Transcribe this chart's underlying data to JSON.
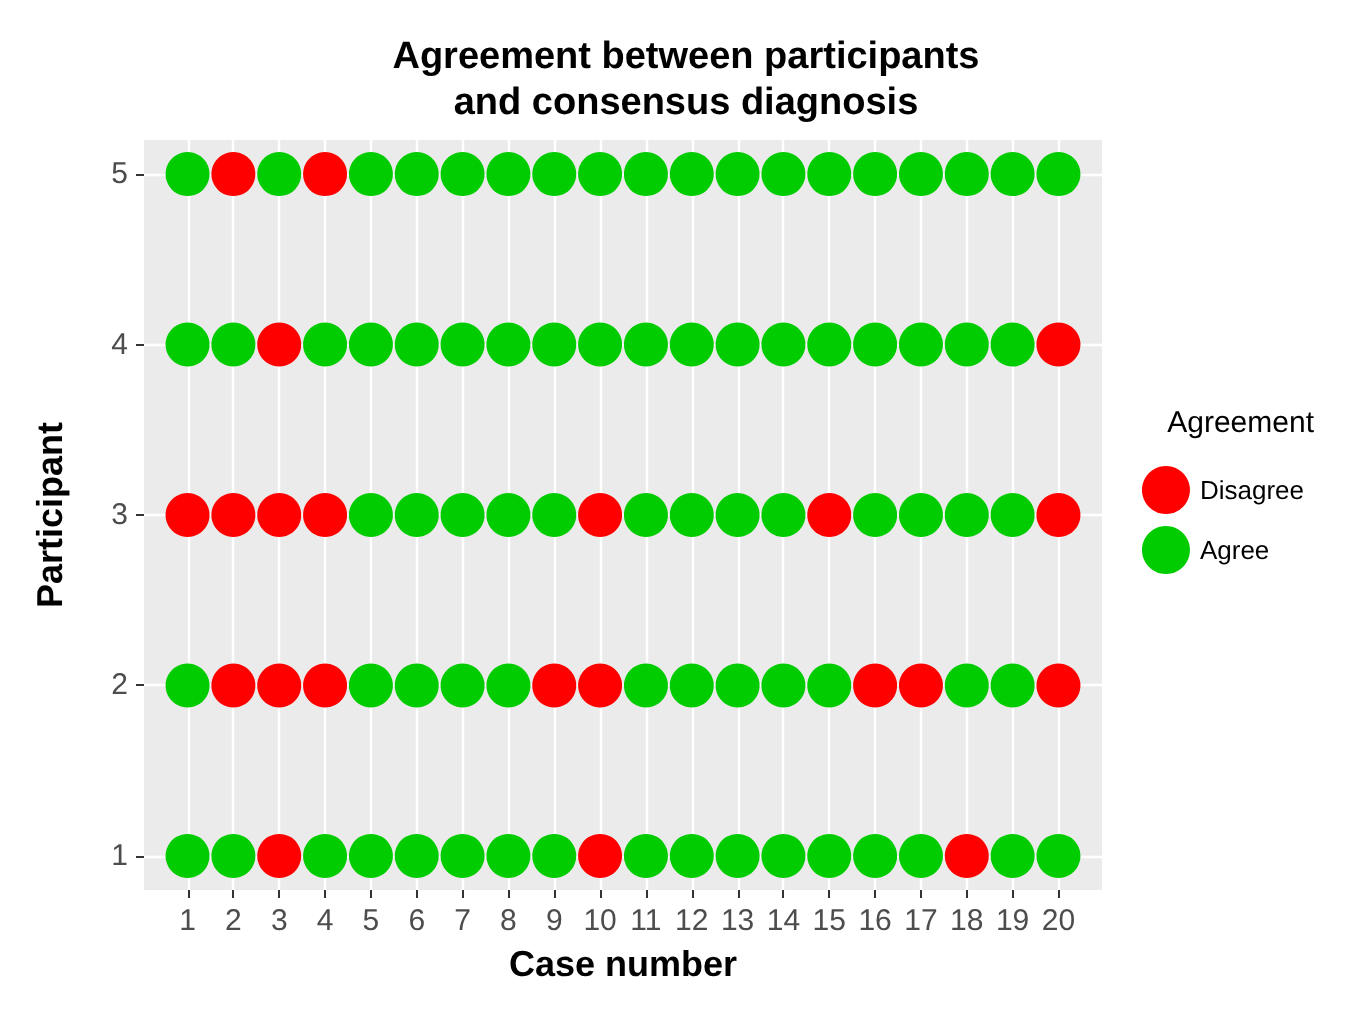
{
  "chart_data": {
    "type": "scatter",
    "title": "Agreement between participants\nand consensus diagnosis",
    "xlabel": "Case number",
    "ylabel": "Participant",
    "legend_title": "Agreement",
    "legend": "right",
    "grid": true,
    "marker": "circle",
    "xlim": [
      0.05,
      20.95
    ],
    "ylim": [
      0.8,
      5.2
    ],
    "xticks": [
      1,
      2,
      3,
      4,
      5,
      6,
      7,
      8,
      9,
      10,
      11,
      12,
      13,
      14,
      15,
      16,
      17,
      18,
      19,
      20
    ],
    "yticks": [
      1,
      2,
      3,
      4,
      5
    ],
    "series": [
      {
        "name": "Disagree",
        "color": "#ff0000",
        "x": [
          2,
          4,
          3,
          20,
          1,
          2,
          3,
          4,
          10,
          15,
          20,
          2,
          3,
          4,
          9,
          10,
          16,
          17,
          20,
          3,
          10,
          18
        ],
        "values": [
          5,
          5,
          4,
          4,
          3,
          3,
          3,
          3,
          3,
          3,
          3,
          2,
          2,
          2,
          2,
          2,
          2,
          2,
          2,
          1,
          1,
          1
        ]
      },
      {
        "name": "Agree",
        "color": "#00cc00",
        "x": [
          1,
          3,
          5,
          6,
          7,
          8,
          9,
          10,
          11,
          12,
          13,
          14,
          15,
          16,
          17,
          18,
          19,
          20,
          1,
          2,
          4,
          5,
          6,
          7,
          8,
          9,
          10,
          11,
          12,
          13,
          14,
          15,
          16,
          17,
          18,
          19,
          5,
          6,
          7,
          8,
          9,
          11,
          12,
          13,
          14,
          16,
          17,
          18,
          19,
          1,
          5,
          6,
          7,
          8,
          11,
          12,
          13,
          14,
          15,
          18,
          19,
          1,
          2,
          4,
          5,
          6,
          7,
          8,
          9,
          11,
          12,
          13,
          14,
          15,
          16,
          17,
          19,
          20
        ],
        "values": [
          5,
          5,
          5,
          5,
          5,
          5,
          5,
          5,
          5,
          5,
          5,
          5,
          5,
          5,
          5,
          5,
          5,
          5,
          4,
          4,
          4,
          4,
          4,
          4,
          4,
          4,
          4,
          4,
          4,
          4,
          4,
          4,
          4,
          4,
          4,
          4,
          3,
          3,
          3,
          3,
          3,
          3,
          3,
          3,
          3,
          3,
          3,
          3,
          3,
          2,
          2,
          2,
          2,
          2,
          2,
          2,
          2,
          2,
          2,
          2,
          2,
          1,
          1,
          1,
          1,
          1,
          1,
          1,
          1,
          1,
          1,
          1,
          1,
          1,
          1,
          1,
          1,
          1
        ]
      }
    ]
  }
}
